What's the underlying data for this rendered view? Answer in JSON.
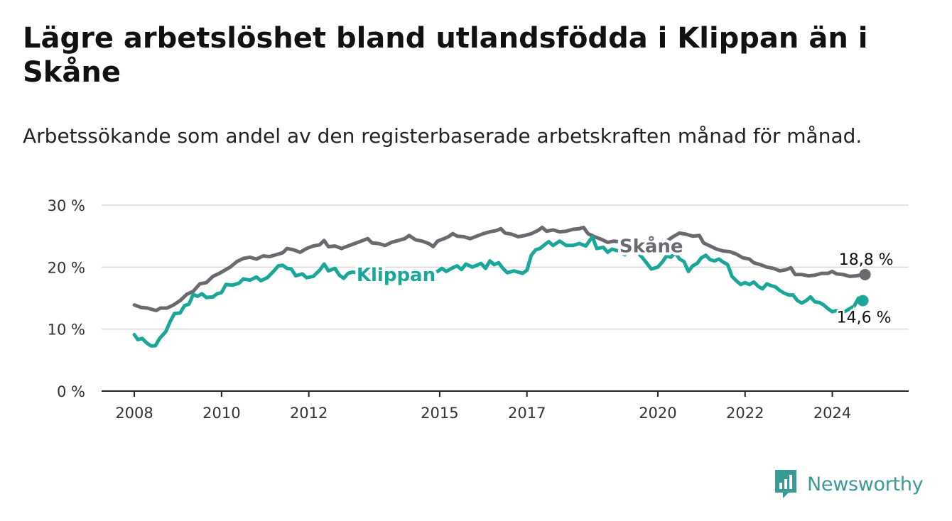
{
  "title": "Lägre arbetslöshet bland utlandsfödda i Klippan än i Skåne",
  "subtitle": "Arbetssökande som andel av den registerbaserade arbetskraften månad för månad.",
  "brand": {
    "name": "Newsworthy",
    "icon": "newsworthy-logo-icon",
    "color": "#3a9a96"
  },
  "chart_data": {
    "type": "line",
    "ylim": [
      0,
      30
    ],
    "yticks": [
      {
        "value": 0,
        "label": "0 %"
      },
      {
        "value": 10,
        "label": "10 %"
      },
      {
        "value": 20,
        "label": "20 %"
      },
      {
        "value": 30,
        "label": "30 %"
      }
    ],
    "xlim": [
      2007.25,
      2025.75
    ],
    "xticks": [
      {
        "value": 2008,
        "label": "2008"
      },
      {
        "value": 2010,
        "label": "2010"
      },
      {
        "value": 2012,
        "label": "2012"
      },
      {
        "value": 2015,
        "label": "2015"
      },
      {
        "value": 2017,
        "label": "2017"
      },
      {
        "value": 2020,
        "label": "2020"
      },
      {
        "value": 2022,
        "label": "2022"
      },
      {
        "value": 2024,
        "label": "2024"
      }
    ],
    "grid": true,
    "series": [
      {
        "name": "Skåne",
        "color": "#6b6870",
        "end_label": "18,8 %",
        "points": [
          [
            2008.0,
            13.9
          ],
          [
            2008.15,
            13.5
          ],
          [
            2008.3,
            13.4
          ],
          [
            2008.5,
            13.0
          ],
          [
            2008.6,
            13.4
          ],
          [
            2008.75,
            13.4
          ],
          [
            2008.9,
            13.9
          ],
          [
            2009.05,
            14.6
          ],
          [
            2009.2,
            15.6
          ],
          [
            2009.35,
            16.1
          ],
          [
            2009.5,
            17.3
          ],
          [
            2009.65,
            17.5
          ],
          [
            2009.8,
            18.5
          ],
          [
            2009.95,
            19.0
          ],
          [
            2010.05,
            19.4
          ],
          [
            2010.2,
            20.0
          ],
          [
            2010.35,
            20.9
          ],
          [
            2010.5,
            21.4
          ],
          [
            2010.65,
            21.6
          ],
          [
            2010.8,
            21.3
          ],
          [
            2010.95,
            21.8
          ],
          [
            2011.1,
            21.7
          ],
          [
            2011.25,
            22.0
          ],
          [
            2011.4,
            22.3
          ],
          [
            2011.5,
            23.0
          ],
          [
            2011.65,
            22.8
          ],
          [
            2011.8,
            22.4
          ],
          [
            2011.95,
            23.0
          ],
          [
            2012.1,
            23.4
          ],
          [
            2012.25,
            23.6
          ],
          [
            2012.35,
            24.3
          ],
          [
            2012.45,
            23.3
          ],
          [
            2012.6,
            23.4
          ],
          [
            2012.75,
            23.0
          ],
          [
            2012.9,
            23.4
          ],
          [
            2013.05,
            23.8
          ],
          [
            2013.2,
            24.2
          ],
          [
            2013.35,
            24.6
          ],
          [
            2013.45,
            23.9
          ],
          [
            2013.6,
            23.8
          ],
          [
            2013.75,
            23.5
          ],
          [
            2013.9,
            24.0
          ],
          [
            2014.05,
            24.3
          ],
          [
            2014.2,
            24.6
          ],
          [
            2014.3,
            25.1
          ],
          [
            2014.45,
            24.4
          ],
          [
            2014.6,
            24.2
          ],
          [
            2014.75,
            23.8
          ],
          [
            2014.85,
            23.3
          ],
          [
            2014.95,
            24.2
          ],
          [
            2015.1,
            24.6
          ],
          [
            2015.2,
            24.9
          ],
          [
            2015.3,
            25.4
          ],
          [
            2015.4,
            25.0
          ],
          [
            2015.55,
            24.9
          ],
          [
            2015.7,
            24.6
          ],
          [
            2015.85,
            25.0
          ],
          [
            2016.0,
            25.4
          ],
          [
            2016.15,
            25.7
          ],
          [
            2016.3,
            25.9
          ],
          [
            2016.4,
            26.2
          ],
          [
            2016.5,
            25.5
          ],
          [
            2016.65,
            25.3
          ],
          [
            2016.8,
            24.9
          ],
          [
            2016.95,
            25.1
          ],
          [
            2017.1,
            25.4
          ],
          [
            2017.25,
            25.9
          ],
          [
            2017.35,
            26.4
          ],
          [
            2017.45,
            25.8
          ],
          [
            2017.6,
            26.0
          ],
          [
            2017.75,
            25.7
          ],
          [
            2017.9,
            25.8
          ],
          [
            2018.05,
            26.1
          ],
          [
            2018.2,
            26.2
          ],
          [
            2018.3,
            26.4
          ],
          [
            2018.4,
            25.4
          ],
          [
            2018.55,
            24.9
          ],
          [
            2018.7,
            24.5
          ],
          [
            2018.85,
            24.0
          ],
          [
            2019.0,
            24.2
          ],
          [
            2019.2,
            24.0
          ],
          [
            2019.4,
            23.6
          ],
          [
            2019.6,
            23.8
          ],
          [
            2019.8,
            23.9
          ],
          [
            2020.0,
            23.4
          ],
          [
            2020.1,
            23.6
          ],
          [
            2020.2,
            24.2
          ],
          [
            2020.35,
            24.9
          ],
          [
            2020.5,
            25.5
          ],
          [
            2020.65,
            25.3
          ],
          [
            2020.8,
            25.0
          ],
          [
            2020.95,
            25.1
          ],
          [
            2021.05,
            23.9
          ],
          [
            2021.2,
            23.4
          ],
          [
            2021.35,
            22.9
          ],
          [
            2021.5,
            22.6
          ],
          [
            2021.65,
            22.5
          ],
          [
            2021.8,
            22.1
          ],
          [
            2021.95,
            21.5
          ],
          [
            2022.1,
            21.3
          ],
          [
            2022.2,
            20.7
          ],
          [
            2022.35,
            20.4
          ],
          [
            2022.5,
            20.0
          ],
          [
            2022.65,
            19.8
          ],
          [
            2022.8,
            19.4
          ],
          [
            2022.95,
            19.6
          ],
          [
            2023.05,
            19.9
          ],
          [
            2023.15,
            18.8
          ],
          [
            2023.3,
            18.8
          ],
          [
            2023.45,
            18.6
          ],
          [
            2023.6,
            18.7
          ],
          [
            2023.75,
            19.0
          ],
          [
            2023.9,
            19.0
          ],
          [
            2024.0,
            19.3
          ],
          [
            2024.1,
            18.9
          ],
          [
            2024.25,
            18.8
          ],
          [
            2024.4,
            18.5
          ],
          [
            2024.55,
            18.6
          ],
          [
            2024.7,
            18.8
          ],
          [
            2024.75,
            18.8
          ]
        ]
      },
      {
        "name": "Klippan",
        "color": "#1aa79a",
        "end_label": "14,6 %",
        "points": [
          [
            2008.0,
            9.1
          ],
          [
            2008.08,
            8.3
          ],
          [
            2008.18,
            8.5
          ],
          [
            2008.28,
            7.8
          ],
          [
            2008.38,
            7.3
          ],
          [
            2008.48,
            7.3
          ],
          [
            2008.58,
            8.5
          ],
          [
            2008.72,
            9.6
          ],
          [
            2008.82,
            11.2
          ],
          [
            2008.92,
            12.5
          ],
          [
            2009.05,
            12.6
          ],
          [
            2009.15,
            13.8
          ],
          [
            2009.25,
            14.0
          ],
          [
            2009.35,
            15.6
          ],
          [
            2009.45,
            15.3
          ],
          [
            2009.55,
            15.7
          ],
          [
            2009.65,
            15.1
          ],
          [
            2009.8,
            15.2
          ],
          [
            2009.9,
            15.7
          ],
          [
            2010.0,
            15.9
          ],
          [
            2010.1,
            17.2
          ],
          [
            2010.25,
            17.1
          ],
          [
            2010.4,
            17.4
          ],
          [
            2010.5,
            18.1
          ],
          [
            2010.65,
            17.9
          ],
          [
            2010.8,
            18.4
          ],
          [
            2010.9,
            17.8
          ],
          [
            2011.05,
            18.3
          ],
          [
            2011.2,
            19.4
          ],
          [
            2011.3,
            20.2
          ],
          [
            2011.4,
            20.3
          ],
          [
            2011.5,
            19.8
          ],
          [
            2011.6,
            19.7
          ],
          [
            2011.7,
            18.6
          ],
          [
            2011.85,
            18.9
          ],
          [
            2011.95,
            18.3
          ],
          [
            2012.1,
            18.5
          ],
          [
            2012.25,
            19.5
          ],
          [
            2012.35,
            20.5
          ],
          [
            2012.45,
            19.4
          ],
          [
            2012.6,
            19.8
          ],
          [
            2012.7,
            18.7
          ],
          [
            2012.8,
            18.2
          ],
          [
            2012.9,
            19.0
          ],
          [
            2013.0,
            19.2
          ],
          [
            2013.2,
            19.0
          ],
          [
            2014.8,
            19.0
          ],
          [
            2014.95,
            19.3
          ],
          [
            2015.05,
            19.8
          ],
          [
            2015.15,
            19.3
          ],
          [
            2015.3,
            19.9
          ],
          [
            2015.4,
            20.2
          ],
          [
            2015.5,
            19.6
          ],
          [
            2015.6,
            20.5
          ],
          [
            2015.75,
            20.0
          ],
          [
            2015.85,
            20.3
          ],
          [
            2015.95,
            20.6
          ],
          [
            2016.05,
            19.8
          ],
          [
            2016.15,
            21.0
          ],
          [
            2016.25,
            20.4
          ],
          [
            2016.35,
            20.7
          ],
          [
            2016.45,
            19.8
          ],
          [
            2016.55,
            19.1
          ],
          [
            2016.7,
            19.4
          ],
          [
            2016.8,
            19.2
          ],
          [
            2016.9,
            19.0
          ],
          [
            2017.0,
            19.5
          ],
          [
            2017.1,
            21.9
          ],
          [
            2017.2,
            22.8
          ],
          [
            2017.3,
            23.0
          ],
          [
            2017.4,
            23.6
          ],
          [
            2017.5,
            24.1
          ],
          [
            2017.6,
            23.5
          ],
          [
            2017.75,
            24.2
          ],
          [
            2017.9,
            23.5
          ],
          [
            2018.05,
            23.5
          ],
          [
            2018.2,
            23.8
          ],
          [
            2018.35,
            23.4
          ],
          [
            2018.5,
            24.9
          ],
          [
            2018.6,
            23.0
          ],
          [
            2018.75,
            23.2
          ],
          [
            2018.85,
            22.4
          ],
          [
            2018.95,
            22.9
          ],
          [
            2019.1,
            22.6
          ],
          [
            2019.25,
            22.0
          ],
          [
            2019.35,
            22.9
          ],
          [
            2019.5,
            22.6
          ],
          [
            2019.65,
            21.5
          ],
          [
            2019.75,
            20.6
          ],
          [
            2019.85,
            19.7
          ],
          [
            2020.0,
            20.0
          ],
          [
            2020.1,
            20.8
          ],
          [
            2020.2,
            21.8
          ],
          [
            2020.3,
            21.6
          ],
          [
            2020.4,
            22.3
          ],
          [
            2020.5,
            21.3
          ],
          [
            2020.6,
            20.9
          ],
          [
            2020.7,
            19.3
          ],
          [
            2020.8,
            20.2
          ],
          [
            2020.9,
            20.6
          ],
          [
            2021.0,
            21.5
          ],
          [
            2021.1,
            21.9
          ],
          [
            2021.2,
            21.2
          ],
          [
            2021.3,
            21.0
          ],
          [
            2021.4,
            21.3
          ],
          [
            2021.5,
            20.8
          ],
          [
            2021.6,
            20.4
          ],
          [
            2021.7,
            18.5
          ],
          [
            2021.8,
            17.8
          ],
          [
            2021.9,
            17.2
          ],
          [
            2022.0,
            17.5
          ],
          [
            2022.1,
            17.2
          ],
          [
            2022.2,
            17.6
          ],
          [
            2022.3,
            16.9
          ],
          [
            2022.4,
            16.5
          ],
          [
            2022.5,
            17.3
          ],
          [
            2022.6,
            17.0
          ],
          [
            2022.7,
            16.8
          ],
          [
            2022.8,
            16.2
          ],
          [
            2022.9,
            15.8
          ],
          [
            2023.0,
            15.5
          ],
          [
            2023.1,
            15.5
          ],
          [
            2023.2,
            14.6
          ],
          [
            2023.3,
            14.2
          ],
          [
            2023.4,
            14.6
          ],
          [
            2023.5,
            15.2
          ],
          [
            2023.6,
            14.4
          ],
          [
            2023.7,
            14.3
          ],
          [
            2023.8,
            13.9
          ],
          [
            2023.9,
            13.3
          ],
          [
            2024.0,
            12.8
          ],
          [
            2024.1,
            13.0
          ],
          [
            2024.2,
            12.7
          ],
          [
            2024.3,
            12.9
          ],
          [
            2024.4,
            13.3
          ],
          [
            2024.5,
            13.7
          ],
          [
            2024.6,
            15.0
          ],
          [
            2024.7,
            14.6
          ]
        ]
      }
    ],
    "annotations": [
      {
        "label": "Klippan",
        "x": 2014.0,
        "y": 18.8,
        "series": "Klippan"
      },
      {
        "label": "Skåne",
        "x": 2019.85,
        "y": 23.4,
        "series": "Skåne"
      }
    ]
  }
}
